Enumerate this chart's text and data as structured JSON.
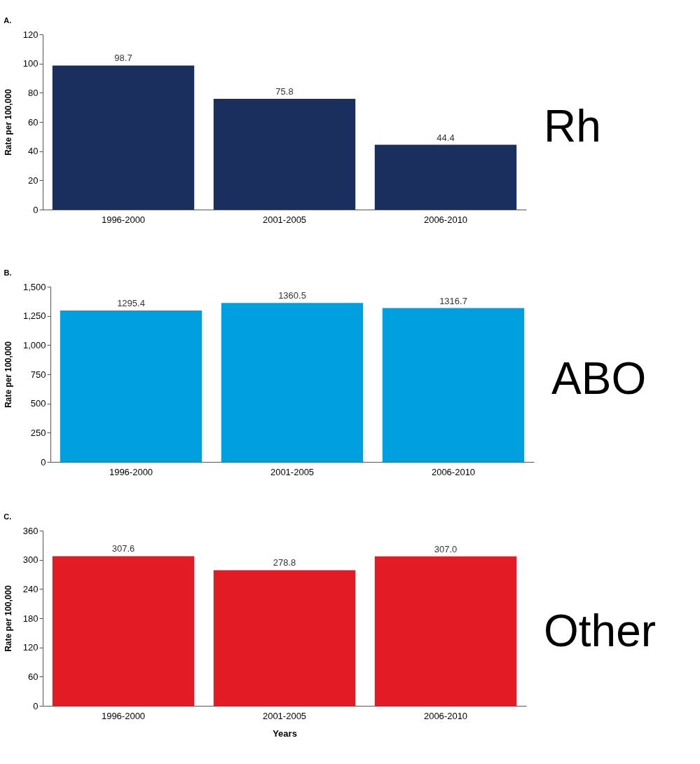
{
  "chart_data": [
    {
      "type": "bar",
      "title": "A.",
      "ylabel": "Rate per 100,000",
      "categories": [
        "1996-2000",
        "2001-2005",
        "2006-2010"
      ],
      "values": [
        98.7,
        75.8,
        44.4
      ],
      "value_labels": [
        "98.7",
        "75.8",
        "44.4"
      ],
      "color": "#1b2f5f",
      "ylim": [
        0,
        120
      ],
      "yticks": [
        0,
        20,
        40,
        60,
        80,
        100,
        120
      ],
      "annotations": [
        "Rh"
      ]
    },
    {
      "type": "bar",
      "title": "B.",
      "ylabel": "Rate per 100,000",
      "categories": [
        "1996-2000",
        "2001-2005",
        "2006-2010"
      ],
      "values": [
        1295.4,
        1360.5,
        1316.7
      ],
      "value_labels": [
        "1295.4",
        "1360.5",
        "1316.7"
      ],
      "color": "#009fdf",
      "ylim": [
        0,
        1500
      ],
      "yticks": [
        0,
        250,
        500,
        750,
        {
          "value": 1000,
          "label": "1,000"
        },
        {
          "value": 1250,
          "label": "1,250"
        },
        {
          "value": 1500,
          "label": "1,500"
        }
      ],
      "annotations": [
        "ABO"
      ]
    },
    {
      "type": "bar",
      "title": "C.",
      "xlabel": "Years",
      "ylabel": "Rate per 100,000",
      "categories": [
        "1996-2000",
        "2001-2005",
        "2006-2010"
      ],
      "values": [
        307.6,
        278.8,
        307.0
      ],
      "value_labels": [
        "307.6",
        "278.8",
        "307.0"
      ],
      "color": "#e31b24",
      "ylim": [
        0,
        360
      ],
      "yticks": [
        0,
        60,
        120,
        180,
        240,
        300,
        360
      ],
      "annotations": [
        "Other"
      ]
    }
  ]
}
